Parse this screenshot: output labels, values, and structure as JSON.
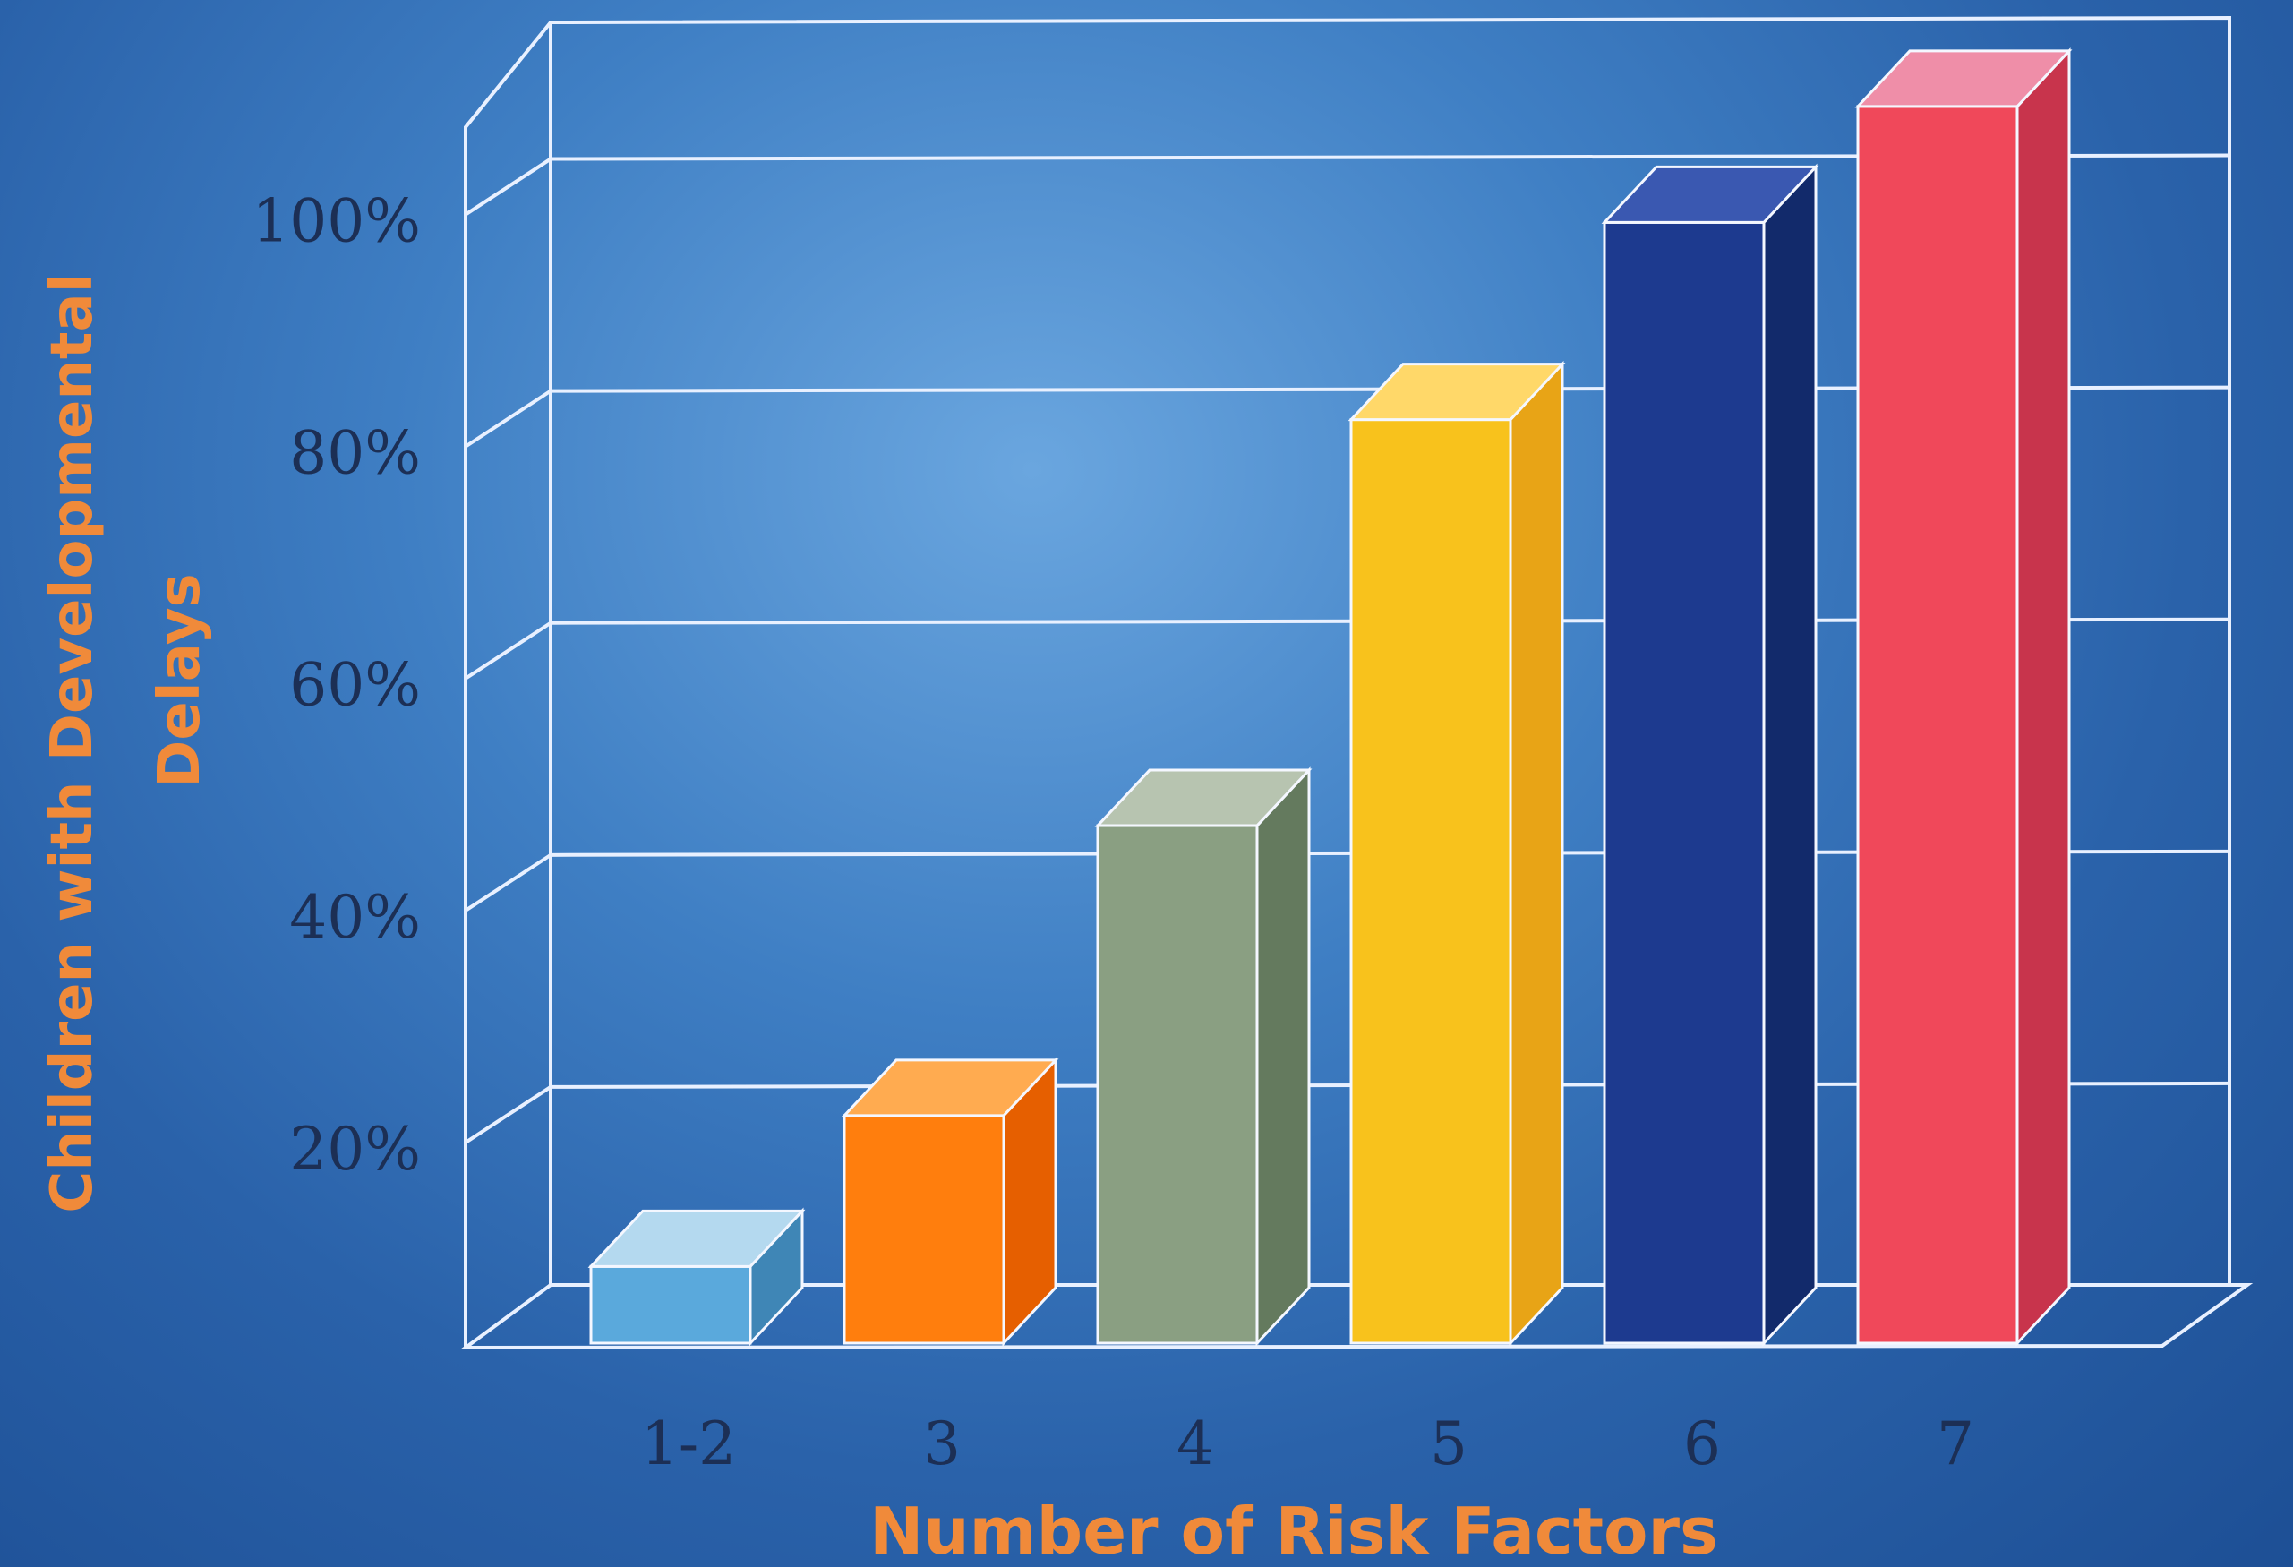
{
  "chart_data": {
    "type": "bar",
    "title": "",
    "xlabel": "Number of Risk Factors",
    "ylabel_lines": [
      "Children with Developmental",
      "Delays"
    ],
    "categories": [
      "1-2",
      "3",
      "4",
      "5",
      "6",
      "7"
    ],
    "values": [
      7,
      20,
      45,
      80,
      97,
      107
    ],
    "ylim": [
      0,
      110
    ],
    "yticks": [
      20,
      40,
      60,
      80,
      100
    ],
    "ytick_labels": [
      "20%",
      "40%",
      "60%",
      "80%",
      "100%"
    ],
    "grid": true,
    "legend": "none",
    "colors": [
      {
        "front": "#5aa9dc",
        "side": "#3f86b6",
        "top": "#b4d9ef"
      },
      {
        "front": "#ff7e0d",
        "side": "#e65f00",
        "top": "#ffab50"
      },
      {
        "front": "#8a9f82",
        "side": "#647a5e",
        "top": "#b7c4b0"
      },
      {
        "front": "#f8c21c",
        "side": "#e8a416",
        "top": "#ffd869"
      },
      {
        "front": "#1d3a8f",
        "side": "#122a6b",
        "top": "#3a58b1"
      },
      {
        "front": "#f0485a",
        "side": "#c8344c",
        "top": "#ef8ea8"
      }
    ]
  }
}
